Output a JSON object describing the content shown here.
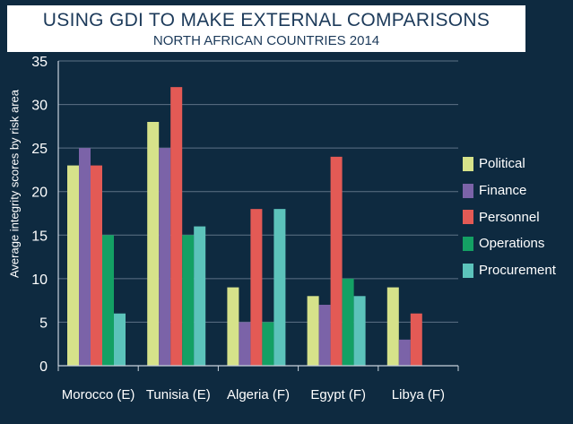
{
  "chart_data": {
    "type": "bar",
    "title": "USING GDI TO MAKE EXTERNAL COMPARISONS",
    "subtitle": "NORTH AFRICAN COUNTRIES 2014",
    "ylabel": "Average integrity scores by risk area",
    "xlabel": "",
    "ylim": [
      0,
      35
    ],
    "yticks": [
      0,
      5,
      10,
      15,
      20,
      25,
      30,
      35
    ],
    "grid": true,
    "legend_position": "right",
    "categories": [
      "Morocco (E)",
      "Tunisia (E)",
      "Algeria (F)",
      "Egypt (F)",
      "Libya (F)"
    ],
    "series": [
      {
        "name": "Political",
        "color": "#d6e28a",
        "values": [
          23,
          28,
          9,
          8,
          9
        ]
      },
      {
        "name": "Finance",
        "color": "#7b63a8",
        "values": [
          25,
          25,
          5,
          7,
          3
        ]
      },
      {
        "name": "Personnel",
        "color": "#e35a55",
        "values": [
          23,
          32,
          18,
          24,
          6
        ]
      },
      {
        "name": "Operations",
        "color": "#14a064",
        "values": [
          15,
          15,
          5,
          10,
          null
        ]
      },
      {
        "name": "Procurement",
        "color": "#5cc3bb",
        "values": [
          6,
          16,
          18,
          8,
          null
        ]
      }
    ]
  }
}
